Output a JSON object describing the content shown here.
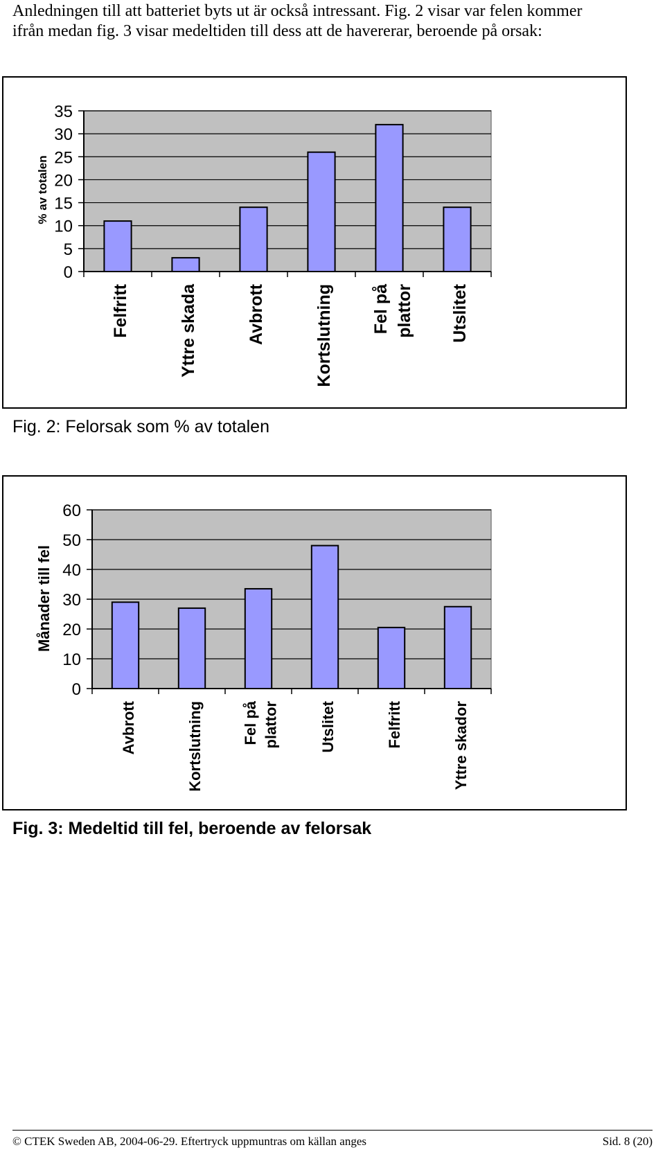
{
  "intro": {
    "line1": "Anledningen till att batteriet byts ut är också intressant. Fig. 2 visar var felen kommer",
    "line2": "ifrån medan fig. 3 visar medeltiden till dess att de havererar, beroende på orsak:"
  },
  "fig2": {
    "caption": "Fig. 2: Felorsak som % av totalen"
  },
  "fig3": {
    "caption": "Fig. 3: Medeltid till fel, beroende av felorsak"
  },
  "footer": {
    "left": "© CTEK Sweden AB, 2004-06-29. Eftertryck uppmuntras om källan anges",
    "right": "Sid. 8 (20)"
  },
  "colors": {
    "bar": "#9999ff",
    "plot_bg": "#c0c0c0"
  },
  "chart_data": [
    {
      "type": "bar",
      "title": "",
      "xlabel": "",
      "ylabel": "% av totalen",
      "ylim": [
        0,
        35
      ],
      "yticks": [
        0,
        5,
        10,
        15,
        20,
        25,
        30,
        35
      ],
      "grid": true,
      "categories": [
        [
          "Felfritt"
        ],
        [
          "Yttre skada"
        ],
        [
          "Avbrott"
        ],
        [
          "Kortslutning"
        ],
        [
          "Fel på",
          "plattor"
        ],
        [
          "Utslitet"
        ]
      ],
      "values": [
        11,
        3,
        14,
        26,
        32,
        14
      ]
    },
    {
      "type": "bar",
      "title": "",
      "xlabel": "",
      "ylabel": "Månader till fel",
      "ylim": [
        0,
        60
      ],
      "yticks": [
        0,
        10,
        20,
        30,
        40,
        50,
        60
      ],
      "grid": true,
      "categories": [
        [
          "Avbrott"
        ],
        [
          "Kortslutning"
        ],
        [
          "Fel på",
          "plattor"
        ],
        [
          "Utslitet"
        ],
        [
          "Felfritt"
        ],
        [
          "Yttre skador"
        ]
      ],
      "values": [
        29,
        27,
        33.5,
        48,
        20.5,
        27.5
      ]
    }
  ]
}
